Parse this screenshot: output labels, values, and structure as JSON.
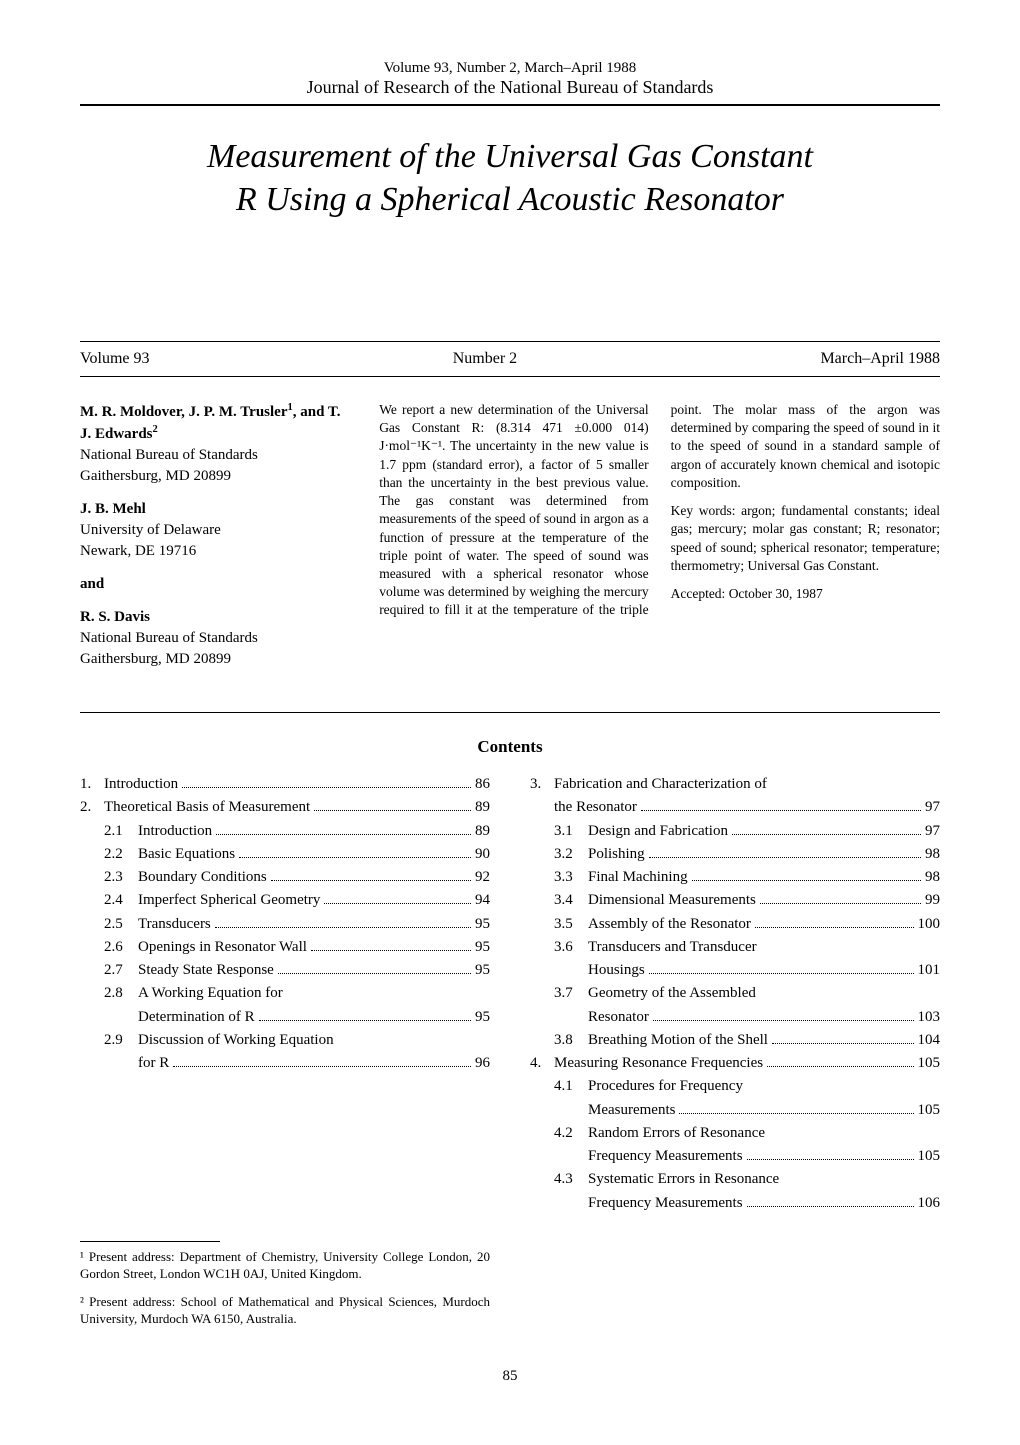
{
  "header": {
    "volume_line": "Volume 93, Number 2, March–April 1988",
    "journal": "Journal of Research of the National Bureau of Standards"
  },
  "title_line1": "Measurement of the Universal Gas Constant",
  "title_line2": "R Using a Spherical Acoustic Resonator",
  "issue": {
    "volume": "Volume 93",
    "number": "Number 2",
    "date": "March–April 1988"
  },
  "authors": {
    "group1_names": "M. R. Moldover, J. P. M. Trusler",
    "group1_sup": "1",
    "group1_conj": ", and T. J. Edwards",
    "group1_sup2": "2",
    "group1_affil1": "National Bureau of Standards",
    "group1_affil2": "Gaithersburg, MD 20899",
    "group2_name": "J. B. Mehl",
    "group2_affil1": "University of Delaware",
    "group2_affil2": "Newark, DE 19716",
    "and": "and",
    "group3_name": "R. S. Davis",
    "group3_affil1": "National Bureau of Standards",
    "group3_affil2": "Gaithersburg, MD  20899"
  },
  "abstract": {
    "p1": "We report a new determination of the Universal Gas Constant R: (8.314 471 ±0.000 014) J·mol⁻¹K⁻¹. The uncertainty in the new value is 1.7 ppm (standard error), a factor of 5 smaller than the uncertainty in the best previous value. The gas constant was determined from measurements of the speed of sound in argon as a function of pressure at the temperature of the triple point of water. The speed of sound was measured with a spherical resonator whose volume was determined by weighing the mercury required to fill it at the temperature of the triple point. The molar mass of the argon was determined by comparing the speed of sound in it to the speed of sound in a standard sample of argon of accurately known chemical and isotopic composition.",
    "keywords_label": "Key words:",
    "keywords": " argon; fundamental constants; ideal gas; mercury; molar gas constant; R; resonator; speed of sound; spherical resonator; temperature; thermometry; Universal Gas Constant.",
    "accepted_label": "Accepted:",
    "accepted": " October 30, 1987"
  },
  "contents_heading": "Contents",
  "toc_left": [
    {
      "num": "1.",
      "label": "Introduction",
      "page": "86"
    },
    {
      "num": "2.",
      "label": "Theoretical Basis of Measurement",
      "page": "89"
    },
    {
      "sub": "2.1",
      "label": "Introduction",
      "page": "89"
    },
    {
      "sub": "2.2",
      "label": "Basic Equations",
      "page": "90"
    },
    {
      "sub": "2.3",
      "label": "Boundary Conditions",
      "page": "92"
    },
    {
      "sub": "2.4",
      "label": "Imperfect Spherical Geometry",
      "page": "94"
    },
    {
      "sub": "2.5",
      "label": "Transducers",
      "page": "95"
    },
    {
      "sub": "2.6",
      "label": "Openings in Resonator Wall",
      "page": "95"
    },
    {
      "sub": "2.7",
      "label": "Steady State Response",
      "page": "95"
    },
    {
      "sub": "2.8",
      "label": "A Working Equation for",
      "cont": "Determination of R",
      "page": "95"
    },
    {
      "sub": "2.9",
      "label": "Discussion of Working Equation",
      "cont": "for R",
      "page": "96"
    }
  ],
  "toc_right": [
    {
      "num": "3.",
      "label": "Fabrication and Characterization of",
      "cont": "the Resonator",
      "page": "97"
    },
    {
      "sub": "3.1",
      "label": "Design and Fabrication",
      "page": "97"
    },
    {
      "sub": "3.2",
      "label": "Polishing",
      "page": "98"
    },
    {
      "sub": "3.3",
      "label": "Final Machining",
      "page": "98"
    },
    {
      "sub": "3.4",
      "label": "Dimensional Measurements",
      "page": "99"
    },
    {
      "sub": "3.5",
      "label": "Assembly of the Resonator",
      "page": "100"
    },
    {
      "sub": "3.6",
      "label": "Transducers and Transducer",
      "cont": "Housings",
      "page": "101"
    },
    {
      "sub": "3.7",
      "label": "Geometry of the Assembled",
      "cont": "Resonator",
      "page": "103"
    },
    {
      "sub": "3.8",
      "label": "Breathing Motion of the Shell",
      "page": "104"
    },
    {
      "num": "4.",
      "label": "Measuring Resonance Frequencies",
      "page": "105"
    },
    {
      "sub": "4.1",
      "label": "Procedures for Frequency",
      "cont": "Measurements",
      "page": "105"
    },
    {
      "sub": "4.2",
      "label": "Random Errors of Resonance",
      "cont": "Frequency Measurements",
      "page": "105"
    },
    {
      "sub": "4.3",
      "label": "Systematic Errors in Resonance",
      "cont": "Frequency Measurements",
      "page": "106"
    }
  ],
  "footnotes": {
    "f1": "¹ Present address: Department of Chemistry, University College London, 20 Gordon Street, London WC1H 0AJ, United Kingdom.",
    "f2": "² Present address: School of Mathematical and Physical Sciences, Murdoch University, Murdoch WA 6150, Australia."
  },
  "page_number": "85",
  "colors": {
    "text": "#000000",
    "background": "#ffffff",
    "rule": "#000000"
  },
  "typography": {
    "body_family": "Times New Roman",
    "title_fontsize_pt": 26,
    "title_style": "italic",
    "body_fontsize_pt": 11,
    "abstract_fontsize_pt": 10
  }
}
